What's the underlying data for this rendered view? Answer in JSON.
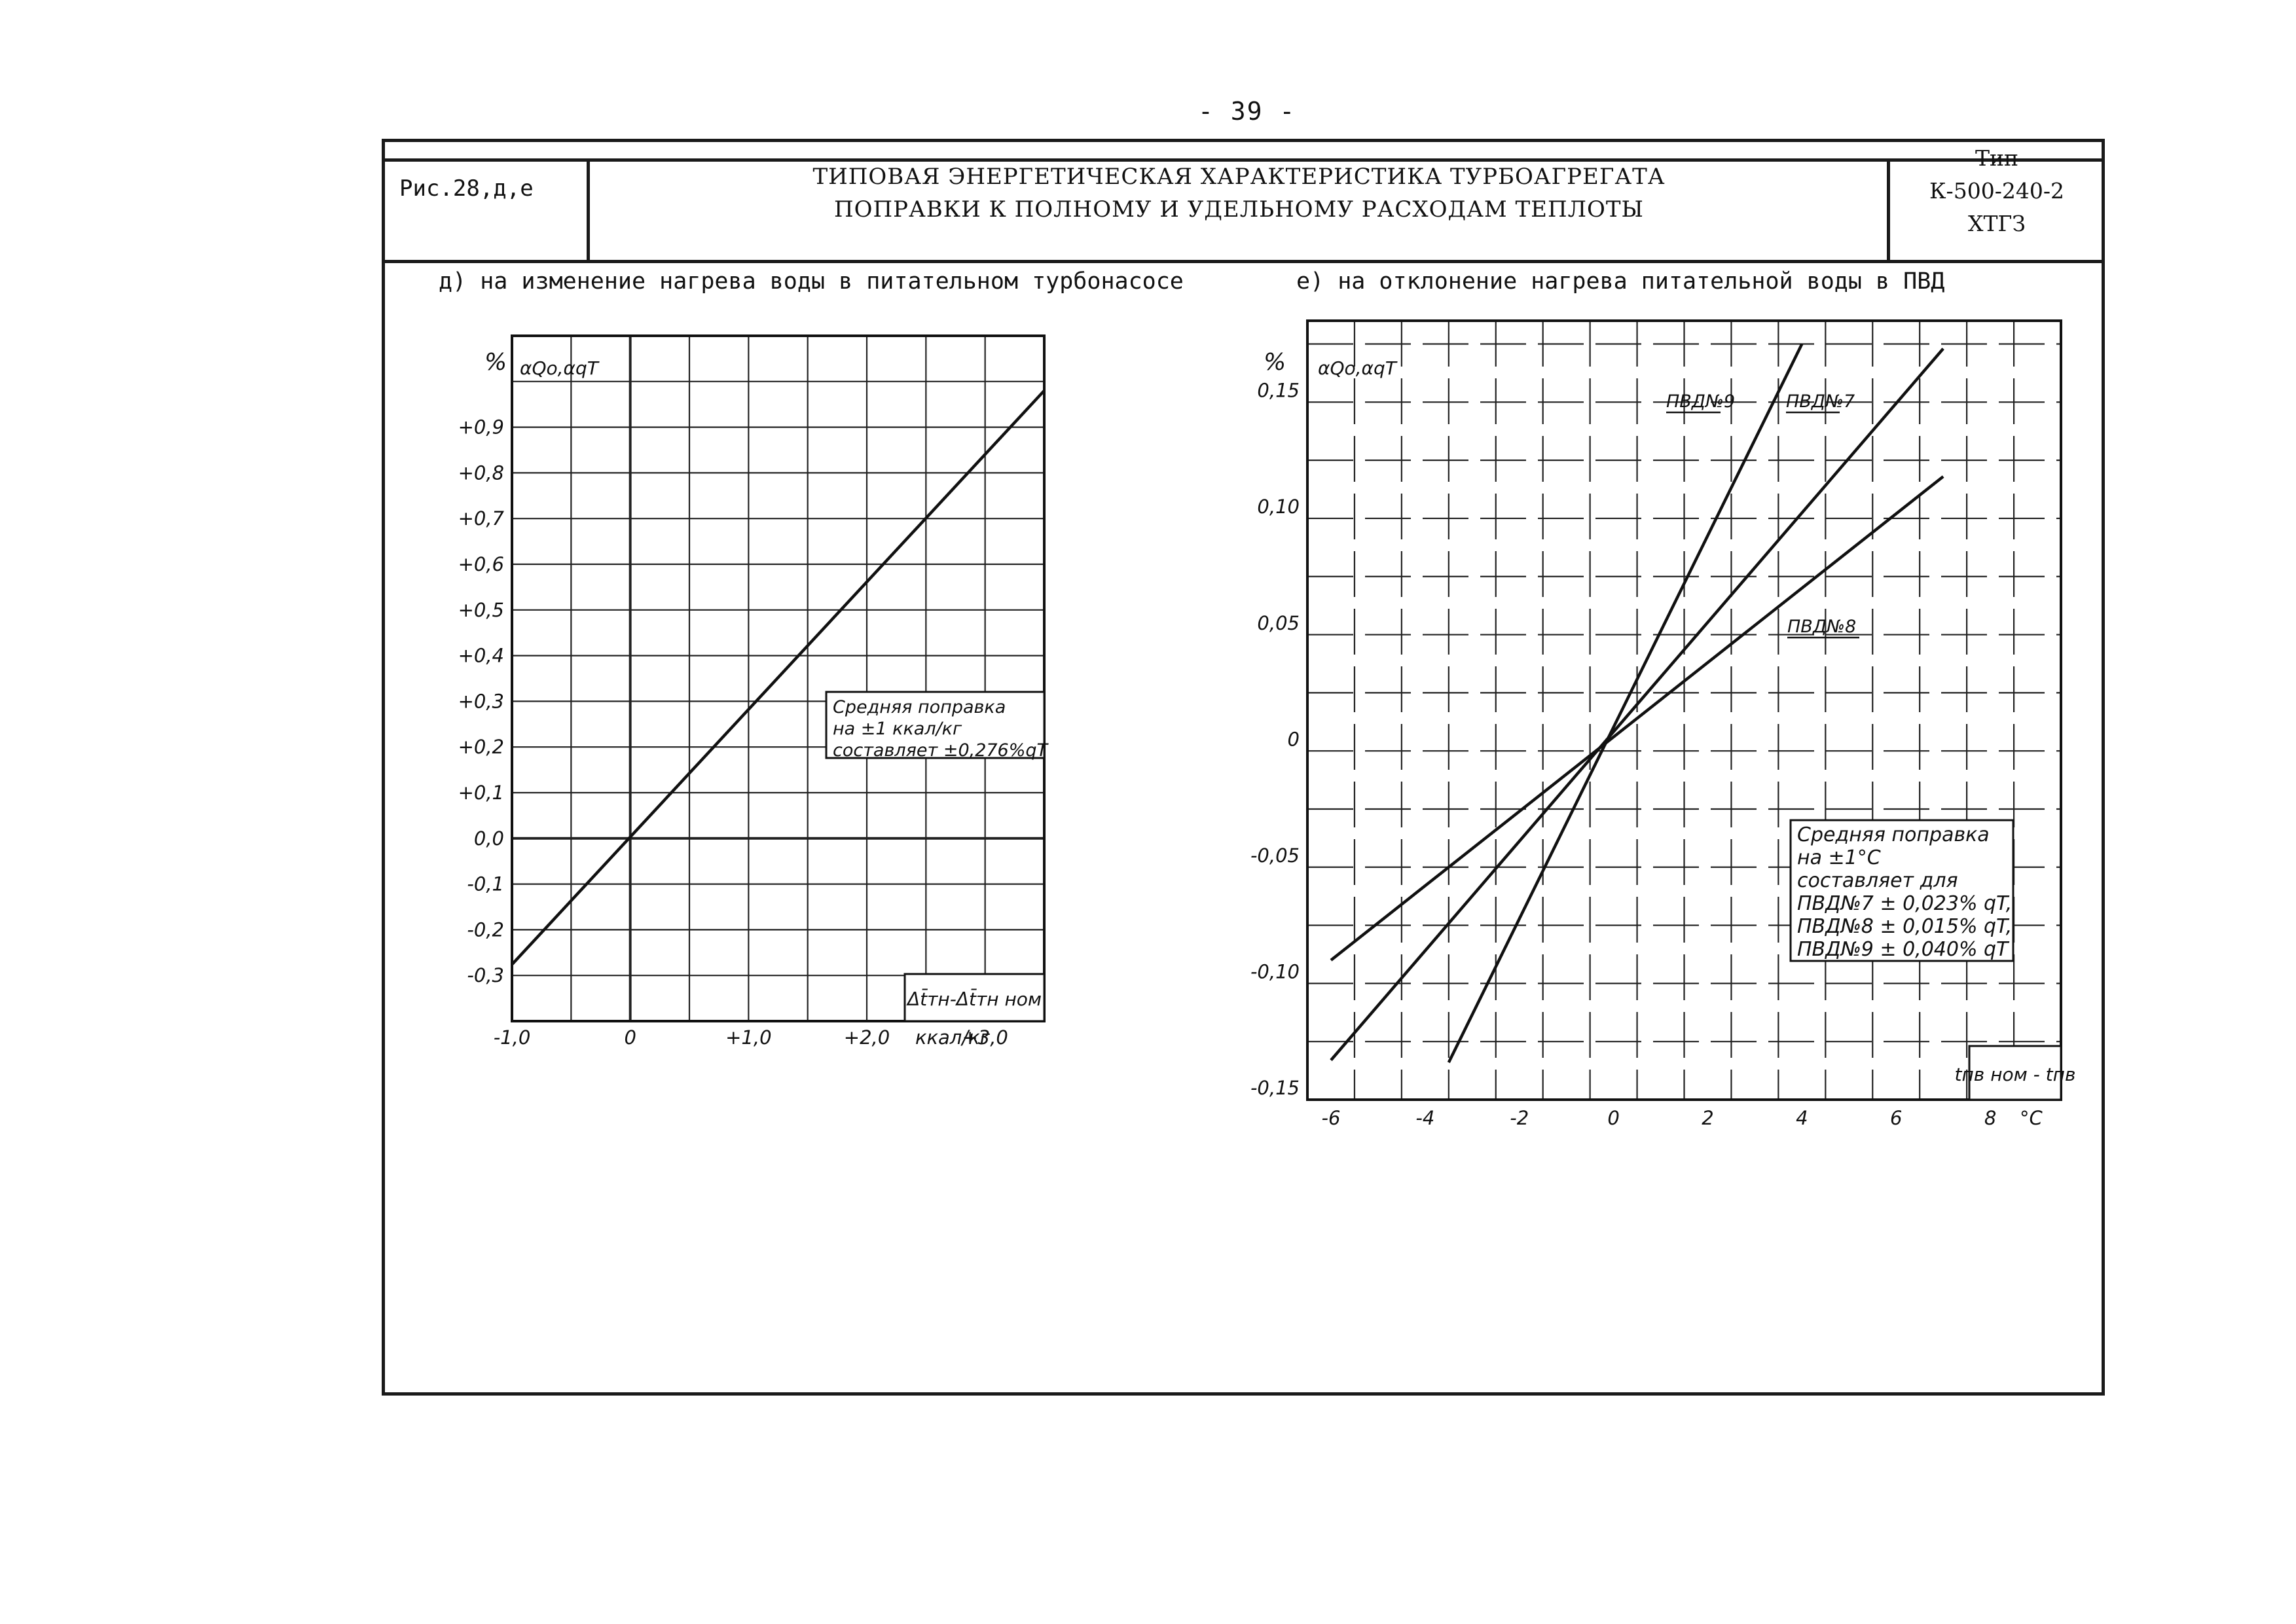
{
  "page": {
    "page_number": "- 39 -",
    "figure_label": "Рис.28,д,е",
    "title_line1": "ТИПОВАЯ ЭНЕРГЕТИЧЕСКАЯ ХАРАКТЕРИСТИКА ТУРБОАГРЕГАТА",
    "title_line2": "ПОПРАВКИ К ПОЛНОМУ И УДЕЛЬНОМУ РАСХОДАМ ТЕПЛОТЫ",
    "type_line1": "Тип",
    "type_line2": "К-500-240-2",
    "type_line3": "ХТГЗ",
    "subtitle_d": "д) на изменение нагрева воды в питательном турбонасосе",
    "subtitle_e": "е) на отклонение нагрева питательной воды в ПВД"
  },
  "chart_data": [
    {
      "type": "line",
      "panel": "d",
      "y_unit": "%",
      "ylabel": "αQo,αqT",
      "xlabel": "Δt̄тн-Δt̄тн ном",
      "x_unit": "ккал/кг",
      "xlim": [
        -1.0,
        3.5
      ],
      "ylim": [
        -0.4,
        1.1
      ],
      "x_ticks": [
        {
          "value": -1.0,
          "label": "-1,0"
        },
        {
          "value": 0,
          "label": "0"
        },
        {
          "value": 1.0,
          "label": "+1,0"
        },
        {
          "value": 2.0,
          "label": "+2,0"
        },
        {
          "value": 3.0,
          "label": "+3,0"
        }
      ],
      "y_ticks": [
        {
          "value": 0.9,
          "label": "+0,9"
        },
        {
          "value": 0.8,
          "label": "+0,8"
        },
        {
          "value": 0.7,
          "label": "+0,7"
        },
        {
          "value": 0.6,
          "label": "+0,6"
        },
        {
          "value": 0.5,
          "label": "+0,5"
        },
        {
          "value": 0.4,
          "label": "+0,4"
        },
        {
          "value": 0.3,
          "label": "+0,3"
        },
        {
          "value": 0.2,
          "label": "+0,2"
        },
        {
          "value": 0.1,
          "label": "+0,1"
        },
        {
          "value": 0.0,
          "label": "0,0"
        },
        {
          "value": -0.1,
          "label": "-0,1"
        },
        {
          "value": -0.2,
          "label": "-0,2"
        },
        {
          "value": -0.3,
          "label": "-0,3"
        }
      ],
      "grid": true,
      "series": [
        {
          "x": [
            -1.0,
            3.5
          ],
          "y": [
            -0.276,
            0.98
          ]
        }
      ],
      "annotation": [
        "Средняя поправка",
        "на ±1 ккал/кг",
        "составляет ±0,276%qT"
      ]
    },
    {
      "type": "line",
      "panel": "e",
      "y_unit": "%",
      "ylabel": "αQo,αqT",
      "xlabel": "tпв ном - tпв",
      "x_unit": "°C",
      "xlim": [
        -6.5,
        9.5
      ],
      "ylim": [
        -0.155,
        0.18
      ],
      "x_ticks": [
        {
          "value": -6,
          "label": "-6"
        },
        {
          "value": -4,
          "label": "-4"
        },
        {
          "value": -2,
          "label": "-2"
        },
        {
          "value": 0,
          "label": "0"
        },
        {
          "value": 2,
          "label": "2"
        },
        {
          "value": 4,
          "label": "4"
        },
        {
          "value": 6,
          "label": "6"
        },
        {
          "value": 8,
          "label": "8"
        }
      ],
      "y_ticks": [
        {
          "value": 0.15,
          "label": "0,15"
        },
        {
          "value": 0.1,
          "label": "0,10"
        },
        {
          "value": 0.05,
          "label": "0,05"
        },
        {
          "value": 0,
          "label": "0"
        },
        {
          "value": -0.05,
          "label": "-0,05"
        },
        {
          "value": -0.1,
          "label": "-0,10"
        },
        {
          "value": -0.15,
          "label": "-0,15"
        }
      ],
      "grid": true,
      "series": [
        {
          "name": "ПВД№9",
          "x": [
            -3.5,
            4.0
          ],
          "y": [
            -0.139,
            0.17
          ]
        },
        {
          "name": "ПВД№7",
          "x": [
            -6.0,
            7.0
          ],
          "y": [
            -0.138,
            0.168
          ]
        },
        {
          "name": "ПВД№8",
          "x": [
            -6.0,
            7.0
          ],
          "y": [
            -0.095,
            0.113
          ]
        }
      ],
      "annotation": [
        "Средняя поправка",
        "на ±1°C",
        "составляет для",
        "ПВД№7   ± 0,023% qT,",
        "ПВД№8  ± 0,015% qT,",
        "ПВД№9  ± 0,040% qT"
      ]
    }
  ]
}
